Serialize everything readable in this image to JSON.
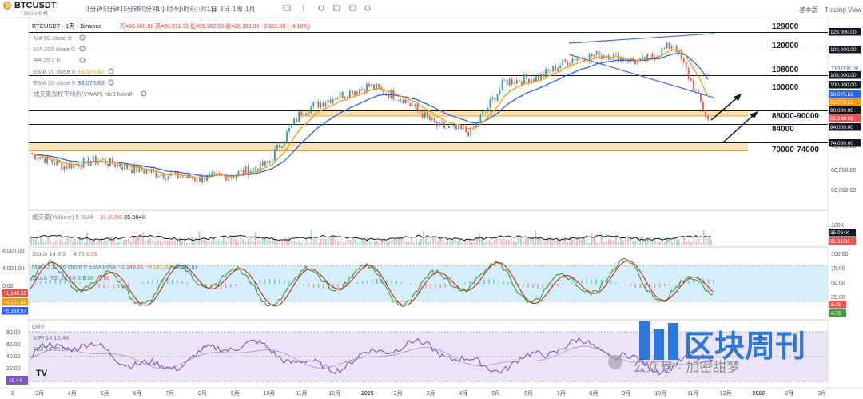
{
  "header": {
    "symbol": "BTCUSDT",
    "subtitle": "Bitcoin价格",
    "symbol_full": "BTCUSDT · 1天 · Binance",
    "ohlc": "开=89,869.88  高=89,911.73  低=85,360.00  收=86,188.08  −3,681.80 (−4.10%)",
    "timeframes": [
      "1分钟",
      "5分钟",
      "15分钟",
      "30分钟",
      "1小时",
      "4小时",
      "6小时",
      "1日",
      "3日",
      "1周",
      "1月"
    ],
    "active_timeframe": "1日",
    "right_controls": [
      "基本版",
      "Trading View"
    ]
  },
  "indicators_main": [
    {
      "label": "MA 50 close 0",
      "value": ""
    },
    {
      "label": "MA 200 close 0",
      "value": ""
    },
    {
      "label": "BB 20 2 0",
      "value": ""
    },
    {
      "label": "EMA 10 close 0",
      "value": "93,579.82"
    },
    {
      "label": "EMA 20 close 0",
      "value": "98,075.83"
    },
    {
      "label": "成交量加权平均价(VWAP) hlc3 Month",
      "value": ""
    }
  ],
  "level_labels": [
    {
      "text": "129000",
      "color": "#e53935"
    },
    {
      "text": "120000",
      "color": "#e53935"
    },
    {
      "text": "108000",
      "color": "#131722"
    },
    {
      "text": "100000",
      "color": "#131722"
    },
    {
      "text": "88000-90000",
      "color": "#131722"
    },
    {
      "text": "84000",
      "color": "#131722"
    },
    {
      "text": "70000-74000",
      "color": "#131722"
    }
  ],
  "price_axis": {
    "ticks": [
      "110,000.00",
      "100,000.00",
      "90,000.00",
      "80,000.00",
      "70,000.00",
      "60,000.00",
      "50,000.00"
    ],
    "tags": [
      {
        "text": "129,000.00",
        "color": "#131722"
      },
      {
        "text": "120,000.00",
        "color": "#131722"
      },
      {
        "text": "108,000.00",
        "color": "#131722"
      },
      {
        "text": "100,000.00",
        "color": "#131722"
      },
      {
        "text": "98,075.83",
        "color": "#2962ff"
      },
      {
        "text": "93,579.82",
        "color": "#ff9800"
      },
      {
        "text": "90,000.00",
        "color": "#131722"
      },
      {
        "text": "86,188.08",
        "color": "#ef5350"
      },
      {
        "text": "84,000.00",
        "color": "#131722"
      },
      {
        "text": "74,000.00",
        "color": "#131722"
      }
    ]
  },
  "volume_pane": {
    "label": "成交量(Volume) 5 SMA",
    "v1": "31.315K",
    "v2": "35.064K",
    "axis": [
      "100K"
    ],
    "tags": [
      {
        "text": "35.064K",
        "color": "#131722"
      },
      {
        "text": "31.315K",
        "color": "#ef5350"
      }
    ]
  },
  "osc_pane": {
    "macd_label": "MACD 12 26 close 9 EMA EMA",
    "macd_values": [
      "−1,149.35",
      "−4,181.62",
      "−5,330.97"
    ],
    "stoch_label": "Stoch 14 3 3",
    "stoch_values": [
      "4.75",
      "8.35"
    ],
    "stoch_rsi_label": "Stoch RSI 14 14 3 3",
    "stoch_rsi_values": [
      "0.00",
      "0.00"
    ],
    "left_axis": [
      "8,000.00",
      "4,000.00",
      "0.00"
    ],
    "left_tags": [
      {
        "text": "−1,149.35",
        "color": "#ef5350"
      },
      {
        "text": "−4,181.62",
        "color": "#ff9800"
      },
      {
        "text": "−5,330.97",
        "color": "#2962ff"
      }
    ],
    "right_axis": [
      "100.00",
      "75.00",
      "50.00",
      "25.00"
    ],
    "right_tags": [
      {
        "text": "8.35",
        "color": "#ef5350"
      },
      {
        "text": "4.75",
        "color": "#43a047"
      }
    ]
  },
  "rsi_pane": {
    "label": "OBV",
    "mfi": "MFI 14  15.44",
    "rsi": "RSI 14  29.08",
    "left_axis": [
      "80.00",
      "60.00",
      "40.00",
      "20.00"
    ],
    "tag": "15.44"
  },
  "time_axis": [
    "2",
    "3月",
    "4月",
    "5月",
    "6月",
    "7月",
    "8月",
    "9月",
    "10月",
    "11月",
    "12月",
    "2025",
    "2月",
    "3月",
    "4月",
    "5月",
    "6月",
    "7月",
    "8月",
    "9月",
    "10月",
    "11月",
    "12月",
    "2026",
    "2月",
    "3月"
  ],
  "watermark": {
    "brand": "区块周刊",
    "handle": "公众号 · 加密甜梦"
  },
  "colors": {
    "ema10": "#ff9800",
    "ema20": "#2962ff",
    "zone": "#f5c86a",
    "trend": "#3e6ad6",
    "macd_area": "#b3e0f5",
    "rsi": "#7e57c2",
    "up": "#26a69a",
    "down": "#ef5350"
  },
  "chart_data": {
    "type": "line",
    "title": "BTCUSDT · 1天 · Binance",
    "x": [
      "2024-03",
      "2024-04",
      "2024-05",
      "2024-06",
      "2024-07",
      "2024-08",
      "2024-09",
      "2024-10",
      "2024-11",
      "2024-12",
      "2025-01",
      "2025-02",
      "2025-03",
      "2025-04",
      "2025-05",
      "2025-06",
      "2025-07",
      "2025-08",
      "2025-09",
      "2025-10",
      "2025-11"
    ],
    "series": [
      {
        "name": "BTC/USDT",
        "values": [
          70000,
          64000,
          67000,
          63000,
          60000,
          58000,
          60000,
          65000,
          90000,
          97000,
          102000,
          96000,
          83000,
          80000,
          104000,
          106000,
          115000,
          117000,
          113000,
          122000,
          86188
        ]
      }
    ],
    "horizontal_levels": [
      129000,
      120000,
      108000,
      100000,
      90000,
      88000,
      84000,
      74000,
      70000
    ],
    "ylim": [
      45000,
      132000
    ]
  }
}
